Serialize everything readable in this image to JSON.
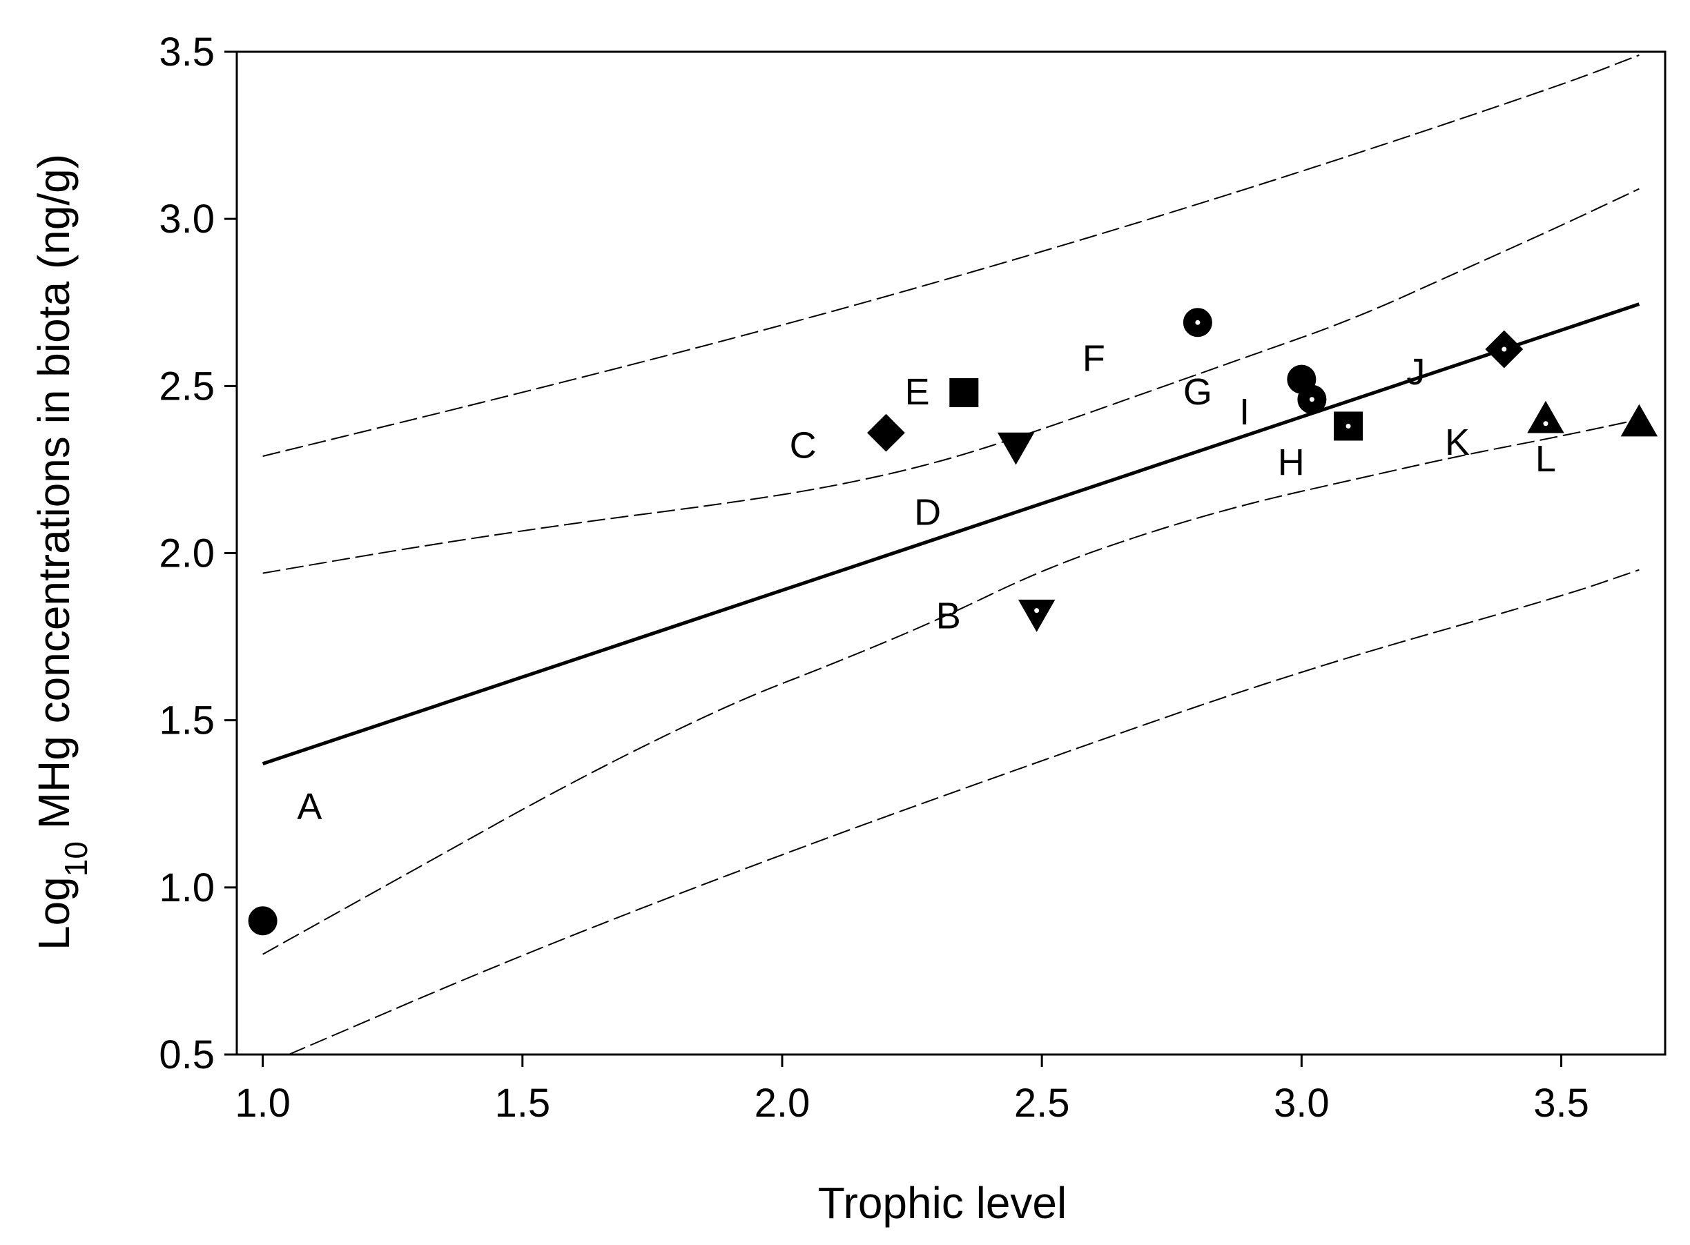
{
  "chart_data": {
    "type": "scatter",
    "xlabel": "Trophic level",
    "ylabel_parts": {
      "pre": "Log",
      "sub": "10",
      "post": " MHg concentrations in biota (ng/g)"
    },
    "xlim": [
      0.95,
      3.7
    ],
    "ylim": [
      0.5,
      3.5
    ],
    "xticks": [
      "1.0",
      "1.5",
      "2.0",
      "2.5",
      "3.0",
      "3.5"
    ],
    "xtick_values": [
      1.0,
      1.5,
      2.0,
      2.5,
      3.0,
      3.5
    ],
    "yticks": [
      "0.5",
      "1.0",
      "1.5",
      "2.0",
      "2.5",
      "3.0",
      "3.5"
    ],
    "ytick_values": [
      0.5,
      1.0,
      1.5,
      2.0,
      2.5,
      3.0,
      3.5
    ],
    "points": [
      {
        "x": 1.0,
        "y": 0.9,
        "marker": "circle",
        "style": "filled"
      },
      {
        "x": 2.49,
        "y": 1.82,
        "marker": "triangle-down",
        "style": "dot"
      },
      {
        "x": 2.2,
        "y": 2.36,
        "marker": "diamond",
        "style": "filled"
      },
      {
        "x": 2.45,
        "y": 2.32,
        "marker": "triangle-down",
        "style": "filled"
      },
      {
        "x": 2.35,
        "y": 2.48,
        "marker": "square",
        "style": "filled"
      },
      {
        "x": 2.8,
        "y": 2.69,
        "marker": "circle",
        "style": "dot"
      },
      {
        "x": 3.0,
        "y": 2.52,
        "marker": "circle",
        "style": "filled"
      },
      {
        "x": 3.09,
        "y": 2.38,
        "marker": "square",
        "style": "dot"
      },
      {
        "x": 3.02,
        "y": 2.46,
        "marker": "circle",
        "style": "dot"
      },
      {
        "x": 3.39,
        "y": 2.61,
        "marker": "diamond",
        "style": "dot"
      },
      {
        "x": 3.47,
        "y": 2.4,
        "marker": "triangle-up",
        "style": "dot"
      },
      {
        "x": 3.65,
        "y": 2.39,
        "marker": "triangle-up",
        "style": "filled"
      }
    ],
    "point_labels": [
      {
        "text": "A",
        "x": 1.09,
        "y": 1.25
      },
      {
        "text": "B",
        "x": 2.32,
        "y": 1.82
      },
      {
        "text": "C",
        "x": 2.04,
        "y": 2.33
      },
      {
        "text": "D",
        "x": 2.28,
        "y": 2.13
      },
      {
        "text": "E",
        "x": 2.26,
        "y": 2.49
      },
      {
        "text": "F",
        "x": 2.6,
        "y": 2.59
      },
      {
        "text": "G",
        "x": 2.8,
        "y": 2.49
      },
      {
        "text": "H",
        "x": 2.98,
        "y": 2.28
      },
      {
        "text": "I",
        "x": 2.89,
        "y": 2.43
      },
      {
        "text": "J",
        "x": 3.22,
        "y": 2.55
      },
      {
        "text": "K",
        "x": 3.3,
        "y": 2.34
      },
      {
        "text": "L",
        "x": 3.47,
        "y": 2.29
      }
    ],
    "regression": {
      "x": [
        1.0,
        3.65
      ],
      "y": [
        1.37,
        2.745
      ]
    },
    "confidence_upper": {
      "x": [
        1.0,
        1.3,
        1.6,
        1.9,
        2.1,
        2.3,
        2.5,
        2.7,
        2.9,
        3.1,
        3.3,
        3.5,
        3.65
      ],
      "y": [
        1.94,
        2.02,
        2.09,
        2.15,
        2.2,
        2.27,
        2.37,
        2.48,
        2.59,
        2.7,
        2.84,
        2.98,
        3.09
      ]
    },
    "confidence_lower": {
      "x": [
        1.0,
        1.3,
        1.6,
        1.9,
        2.1,
        2.3,
        2.5,
        2.7,
        2.9,
        3.1,
        3.3,
        3.5,
        3.65
      ],
      "y": [
        0.8,
        1.06,
        1.32,
        1.55,
        1.67,
        1.8,
        1.95,
        2.06,
        2.15,
        2.22,
        2.29,
        2.35,
        2.4
      ]
    },
    "prediction_upper": {
      "x": [
        1.0,
        1.5,
        2.0,
        2.5,
        3.0,
        3.5,
        3.65
      ],
      "y": [
        2.29,
        2.48,
        2.68,
        2.9,
        3.14,
        3.4,
        3.49
      ]
    },
    "prediction_lower": {
      "x": [
        1.05,
        1.5,
        2.0,
        2.5,
        3.0,
        3.5,
        3.65
      ],
      "y": [
        0.5,
        0.8,
        1.1,
        1.38,
        1.65,
        1.87,
        1.95
      ]
    },
    "grid": false,
    "legend": "none"
  }
}
